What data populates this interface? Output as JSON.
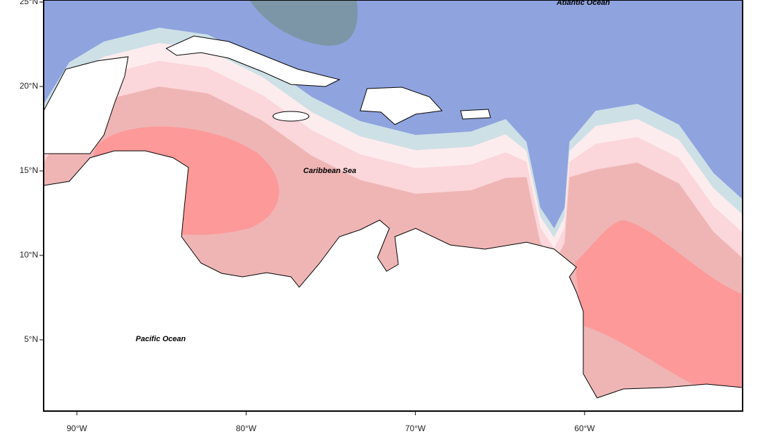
{
  "map": {
    "lat_labels": [
      "25°N",
      "20°N",
      "15°N",
      "10°N",
      "5°N"
    ],
    "lon_labels": [
      "90°W",
      "80°W",
      "70°W",
      "60°W"
    ],
    "labels": [
      "Atlantic Ocean",
      "Caribbean Sea",
      "Pacific Ocean"
    ]
  }
}
